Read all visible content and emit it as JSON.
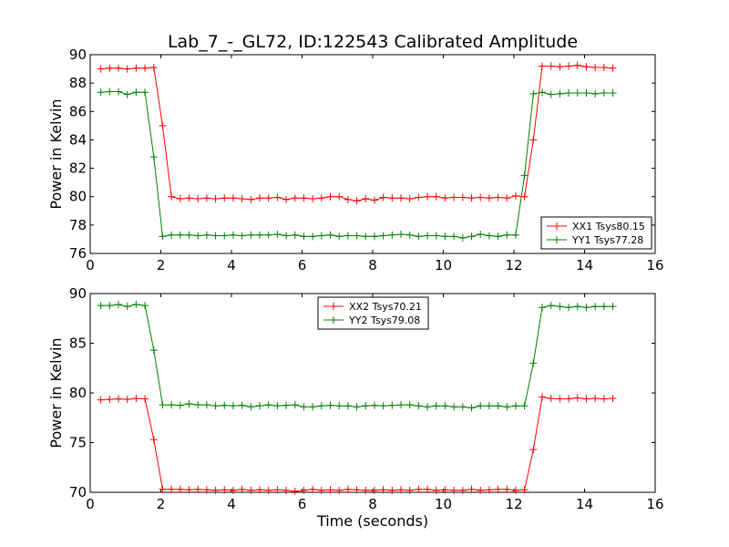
{
  "chart_data": [
    {
      "type": "line",
      "title": "Lab_7_-_GL72, ID:122543 Calibrated Amplitude",
      "xlabel": "",
      "ylabel": "Power in Kelvin",
      "xlim": [
        0,
        16
      ],
      "ylim": [
        76,
        90
      ],
      "xticks": [
        "0",
        "2",
        "4",
        "6",
        "8",
        "10",
        "12",
        "14",
        "16"
      ],
      "yticks": [
        "76",
        "78",
        "80",
        "82",
        "84",
        "86",
        "88",
        "90"
      ],
      "grid": false,
      "legend_position": "lower-right",
      "x": [
        0.3,
        0.55,
        0.8,
        1.05,
        1.3,
        1.55,
        1.8,
        2.05,
        2.3,
        2.55,
        2.8,
        3.05,
        3.3,
        3.55,
        3.8,
        4.05,
        4.3,
        4.55,
        4.8,
        5.05,
        5.3,
        5.55,
        5.8,
        6.05,
        6.3,
        6.55,
        6.8,
        7.05,
        7.3,
        7.55,
        7.8,
        8.05,
        8.3,
        8.55,
        8.8,
        9.05,
        9.3,
        9.55,
        9.8,
        10.05,
        10.3,
        10.55,
        10.8,
        11.05,
        11.3,
        11.55,
        11.8,
        12.05,
        12.3,
        12.55,
        12.8,
        13.05,
        13.3,
        13.55,
        13.8,
        14.05,
        14.3,
        14.55,
        14.8
      ],
      "series": [
        {
          "name": "XX1 Tsys80.15",
          "color": "#ff0000",
          "values": [
            89.0,
            89.05,
            89.05,
            89.0,
            89.05,
            89.05,
            89.1,
            85.0,
            80.0,
            79.85,
            79.9,
            79.85,
            79.9,
            79.85,
            79.9,
            79.9,
            79.85,
            79.8,
            79.9,
            79.9,
            79.95,
            79.8,
            79.9,
            79.9,
            79.85,
            79.9,
            80.0,
            80.0,
            79.8,
            79.7,
            79.85,
            79.75,
            79.95,
            79.9,
            79.9,
            79.85,
            79.95,
            80.0,
            80.0,
            79.9,
            79.95,
            79.95,
            79.9,
            79.95,
            79.9,
            79.95,
            79.9,
            80.05,
            80.0,
            84.0,
            89.2,
            89.2,
            89.15,
            89.2,
            89.25,
            89.15,
            89.1,
            89.1,
            89.05
          ]
        },
        {
          "name": "YY1 Tsys77.28",
          "color": "#008000",
          "values": [
            87.35,
            87.4,
            87.4,
            87.2,
            87.35,
            87.35,
            82.8,
            77.2,
            77.3,
            77.3,
            77.3,
            77.25,
            77.3,
            77.25,
            77.25,
            77.3,
            77.25,
            77.3,
            77.3,
            77.3,
            77.35,
            77.25,
            77.3,
            77.2,
            77.2,
            77.25,
            77.3,
            77.2,
            77.25,
            77.25,
            77.2,
            77.2,
            77.25,
            77.3,
            77.35,
            77.3,
            77.2,
            77.25,
            77.25,
            77.2,
            77.2,
            77.1,
            77.2,
            77.35,
            77.25,
            77.2,
            77.3,
            77.3,
            81.5,
            87.25,
            87.35,
            87.2,
            87.25,
            87.3,
            87.3,
            87.3,
            87.25,
            87.3,
            87.3
          ]
        }
      ]
    },
    {
      "type": "line",
      "title": "",
      "xlabel": "Time (seconds)",
      "ylabel": "Power in Kelvin",
      "xlim": [
        0,
        16
      ],
      "ylim": [
        70,
        90
      ],
      "xticks": [
        "0",
        "2",
        "4",
        "6",
        "8",
        "10",
        "12",
        "14",
        "16"
      ],
      "yticks": [
        "70",
        "75",
        "80",
        "85",
        "90"
      ],
      "grid": false,
      "legend_position": "top-center",
      "x": [
        0.3,
        0.55,
        0.8,
        1.05,
        1.3,
        1.55,
        1.8,
        2.05,
        2.3,
        2.55,
        2.8,
        3.05,
        3.3,
        3.55,
        3.8,
        4.05,
        4.3,
        4.55,
        4.8,
        5.05,
        5.3,
        5.55,
        5.8,
        6.05,
        6.3,
        6.55,
        6.8,
        7.05,
        7.3,
        7.55,
        7.8,
        8.05,
        8.3,
        8.55,
        8.8,
        9.05,
        9.3,
        9.55,
        9.8,
        10.05,
        10.3,
        10.55,
        10.8,
        11.05,
        11.3,
        11.55,
        11.8,
        12.05,
        12.3,
        12.55,
        12.8,
        13.05,
        13.3,
        13.55,
        13.8,
        14.05,
        14.3,
        14.55,
        14.8
      ],
      "series": [
        {
          "name": "XX2 Tsys70.21",
          "color": "#ff0000",
          "values": [
            79.3,
            79.35,
            79.4,
            79.35,
            79.45,
            79.4,
            75.3,
            70.3,
            70.3,
            70.3,
            70.25,
            70.3,
            70.25,
            70.2,
            70.25,
            70.2,
            70.3,
            70.2,
            70.25,
            70.2,
            70.25,
            70.2,
            70.1,
            70.2,
            70.3,
            70.2,
            70.25,
            70.2,
            70.3,
            70.25,
            70.2,
            70.2,
            70.25,
            70.2,
            70.25,
            70.2,
            70.3,
            70.3,
            70.2,
            70.25,
            70.2,
            70.2,
            70.3,
            70.2,
            70.25,
            70.3,
            70.3,
            70.2,
            70.25,
            74.3,
            79.6,
            79.45,
            79.4,
            79.4,
            79.5,
            79.4,
            79.45,
            79.4,
            79.45
          ]
        },
        {
          "name": "YY2 Tsys79.08",
          "color": "#008000",
          "values": [
            88.8,
            88.8,
            88.9,
            88.7,
            88.9,
            88.8,
            84.3,
            78.8,
            78.8,
            78.75,
            78.9,
            78.8,
            78.8,
            78.7,
            78.75,
            78.7,
            78.75,
            78.6,
            78.7,
            78.8,
            78.7,
            78.75,
            78.8,
            78.6,
            78.6,
            78.7,
            78.75,
            78.7,
            78.7,
            78.6,
            78.7,
            78.75,
            78.7,
            78.75,
            78.8,
            78.8,
            78.7,
            78.6,
            78.7,
            78.7,
            78.6,
            78.6,
            78.5,
            78.7,
            78.7,
            78.7,
            78.6,
            78.7,
            78.7,
            83.0,
            88.6,
            88.8,
            88.7,
            88.6,
            88.7,
            88.6,
            88.7,
            88.7,
            88.7
          ]
        }
      ]
    }
  ]
}
